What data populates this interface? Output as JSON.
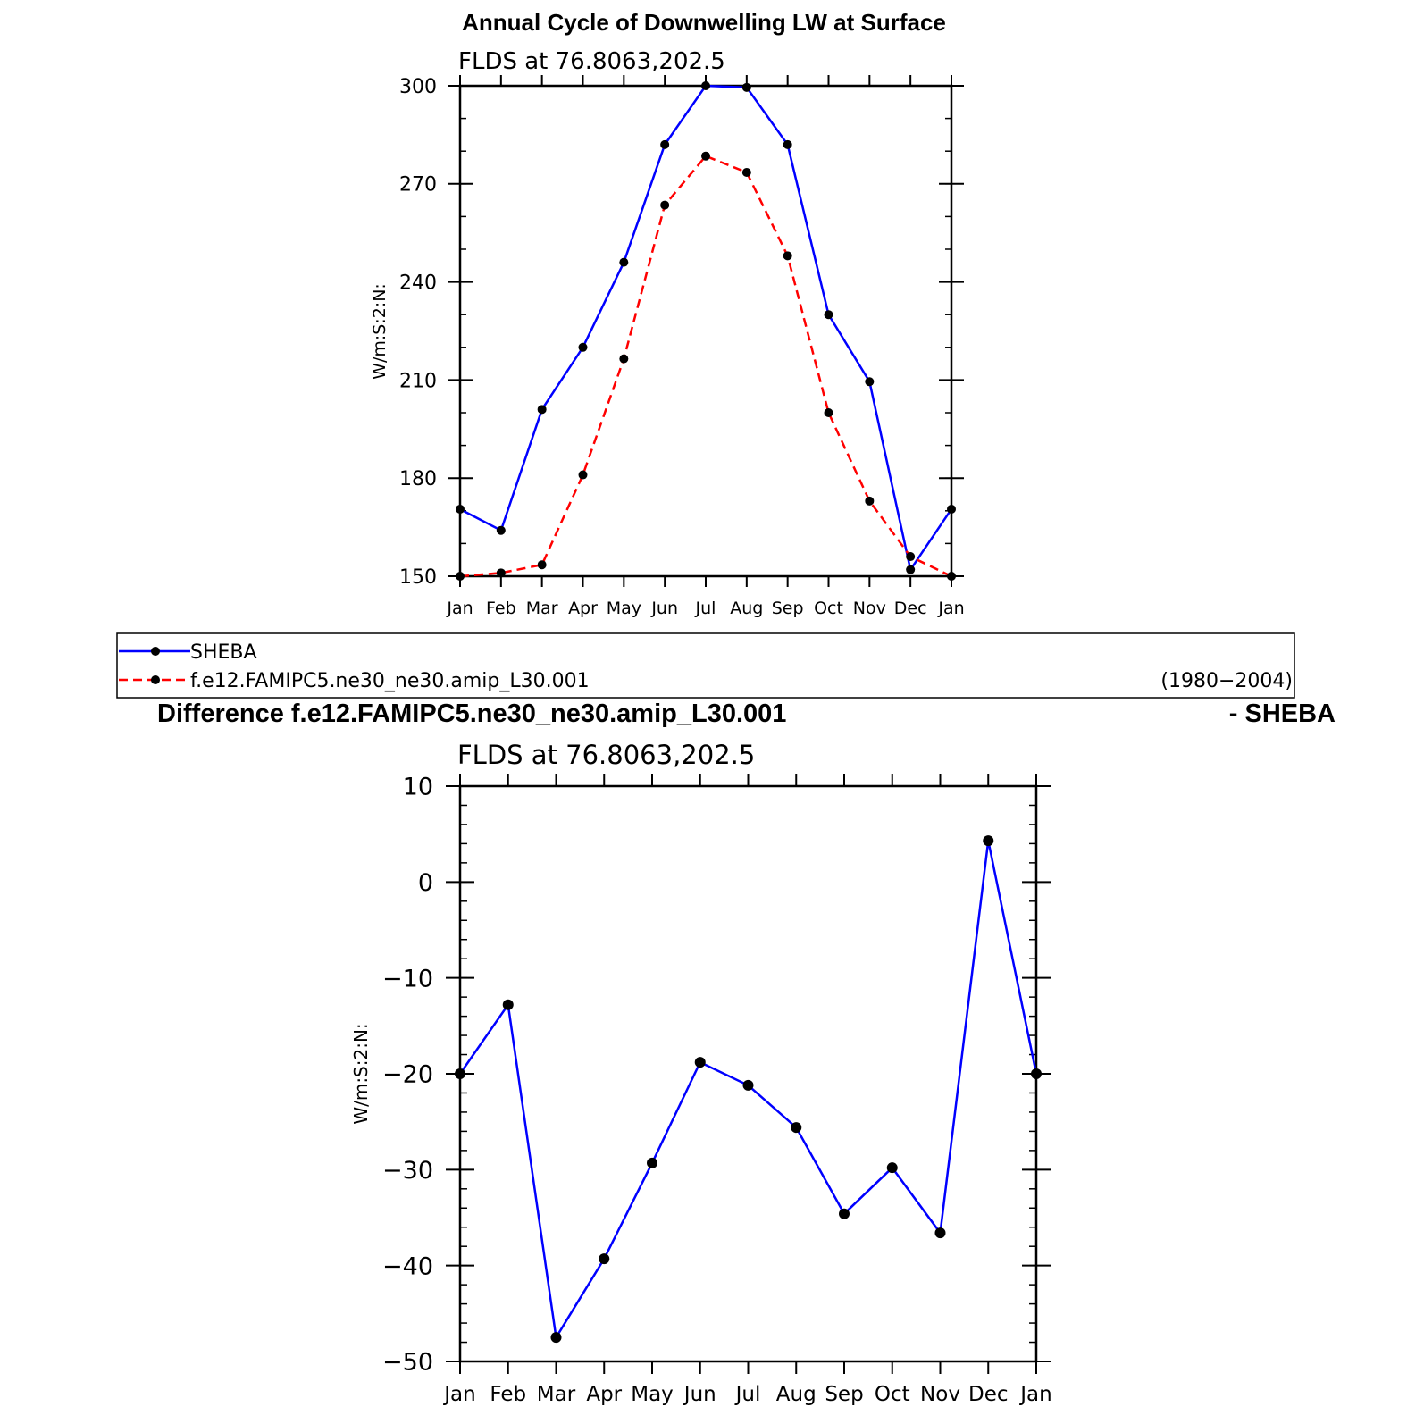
{
  "chart_data": [
    {
      "type": "line",
      "title": "Annual Cycle of Downwelling LW at Surface",
      "subtitle": "FLDS at 76.8063,202.5",
      "xlabel": "",
      "ylabel": "W/m:S:2:N:",
      "categories": [
        "Jan",
        "Feb",
        "Mar",
        "Apr",
        "May",
        "Jun",
        "Jul",
        "Aug",
        "Sep",
        "Oct",
        "Nov",
        "Dec",
        "Jan"
      ],
      "ylim": [
        150,
        300
      ],
      "yticks": [
        150,
        180,
        210,
        240,
        270,
        300
      ],
      "grid": false,
      "series": [
        {
          "name": "SHEBA",
          "color": "#0000ff",
          "style": "solid",
          "values": [
            170.5,
            164,
            201,
            220,
            246,
            282,
            300,
            299.5,
            282,
            230,
            209.5,
            152,
            170.5
          ]
        },
        {
          "name": "f.e12.FAMIPC5.ne30_ne30.amip_L30.001",
          "color": "#ff0000",
          "style": "dashed",
          "values": [
            150,
            151,
            153.5,
            181,
            216.5,
            263.5,
            278.5,
            273.5,
            248,
            200,
            173,
            156,
            150
          ]
        }
      ],
      "legend": {
        "placement": "below",
        "entries": [
          "SHEBA",
          "f.e12.FAMIPC5.ne30_ne30.amip_L30.001"
        ],
        "right_note": "(1980−2004)"
      }
    },
    {
      "type": "line",
      "title": "Difference f.e12.FAMIPC5.ne30_ne30.amip_L30.001",
      "title_right": "- SHEBA",
      "subtitle": "FLDS at 76.8063,202.5",
      "xlabel": "",
      "ylabel": "W/m:S:2:N:",
      "categories": [
        "Jan",
        "Feb",
        "Mar",
        "Apr",
        "May",
        "Jun",
        "Jul",
        "Aug",
        "Sep",
        "Oct",
        "Nov",
        "Dec",
        "Jan"
      ],
      "ylim": [
        -50,
        10
      ],
      "yticks": [
        -50,
        -40,
        -30,
        -20,
        -10,
        0,
        10
      ],
      "ytick_labels": [
        "−50",
        "−40",
        "−30",
        "−20",
        "−10",
        "0",
        "10"
      ],
      "grid": false,
      "series": [
        {
          "color": "#0000ff",
          "style": "solid",
          "values": [
            -20,
            -12.8,
            -47.5,
            -39.3,
            -29.3,
            -18.8,
            -21.2,
            -25.6,
            -34.6,
            -29.8,
            -36.6,
            4.3,
            -20
          ]
        }
      ]
    }
  ]
}
